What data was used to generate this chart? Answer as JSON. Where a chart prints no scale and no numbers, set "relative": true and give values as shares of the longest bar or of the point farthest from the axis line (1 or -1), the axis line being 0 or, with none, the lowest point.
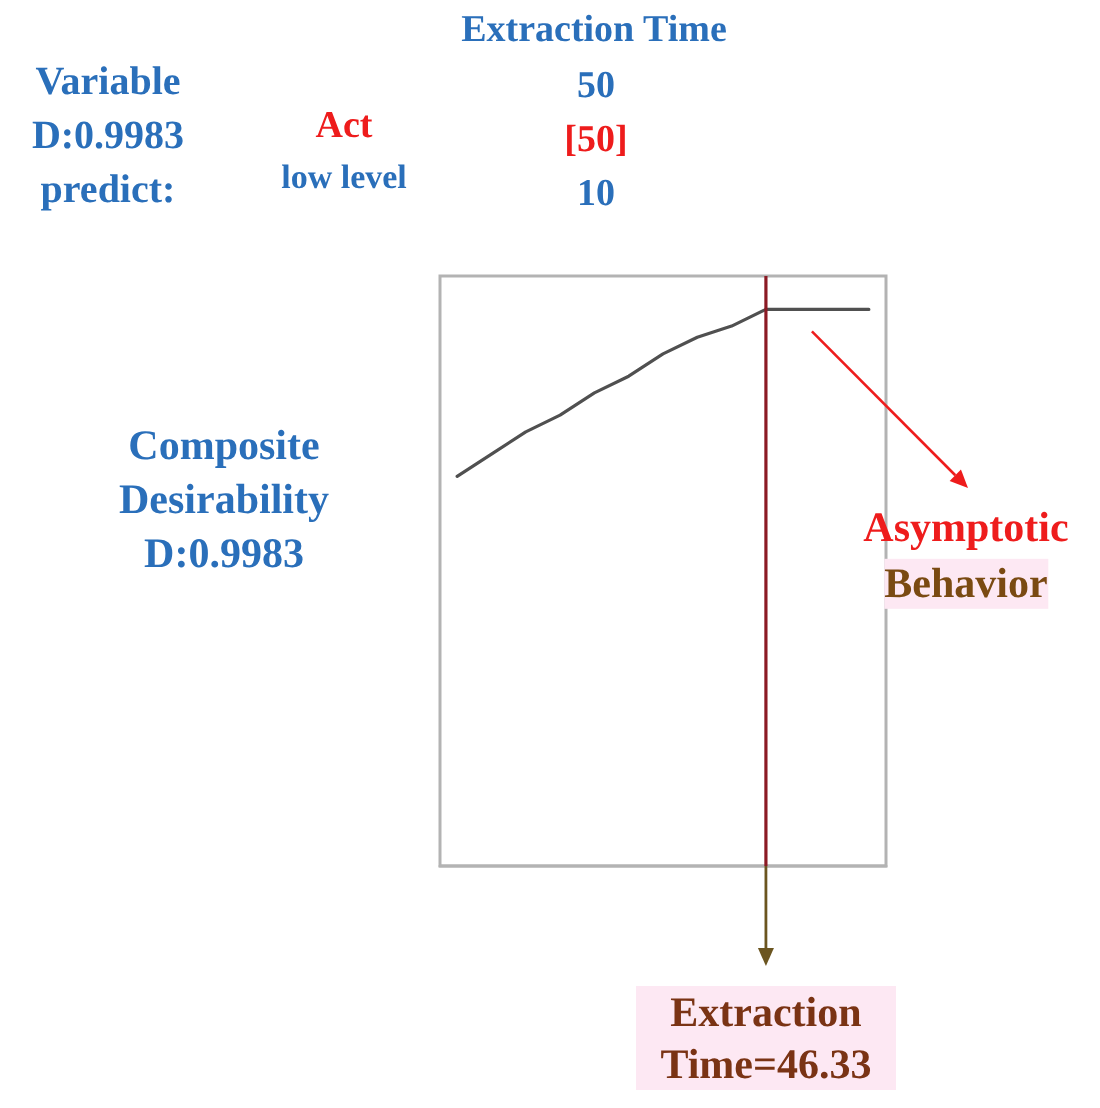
{
  "chart_data": {
    "type": "line",
    "relative": true,
    "marker": "none",
    "categories": [
      null,
      null,
      null,
      null,
      null,
      null,
      null,
      null,
      null,
      null,
      null,
      null,
      null
    ],
    "series": [
      {
        "color": "#505050",
        "values": [
          0.7,
          0.74,
          0.78,
          0.81,
          0.85,
          0.88,
          0.92,
          0.95,
          0.97,
          1,
          1,
          1,
          1
        ]
      }
    ],
    "annotations": [
      "Extraction Time",
      "Variable",
      "50",
      "D:0.9983",
      "Act",
      "[50]",
      "predict:",
      "low level",
      "10",
      "Composite Desirability D:0.9983",
      "Asymptotic",
      "Behavior",
      "Extraction Time=46.33"
    ]
  }
}
